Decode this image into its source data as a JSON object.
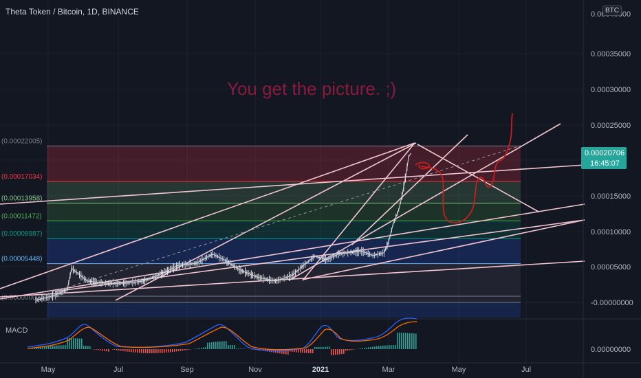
{
  "header": {
    "symbol_title": "Theta Token / Bitcoin, 1D, BINANCE",
    "currency_badge": "BTC"
  },
  "annotation": {
    "text": "You get the picture. ;)",
    "color": "#8a1a3e"
  },
  "price_label": {
    "value": "0.00020706",
    "countdown": "16:45:07",
    "color": "#26a69a"
  },
  "colors": {
    "background": "#131722",
    "candle_up": "#e0e3eb",
    "candle_down": "#b2b5be",
    "trendline": "#f2c6d0",
    "drawing": "#c81e1e",
    "macd_line": "#2962ff",
    "signal_line": "#ff6d00"
  },
  "chart_data": {
    "type": "line",
    "title": "Theta Token / Bitcoin, 1D, BINANCE",
    "x_ticks": [
      "May",
      "Jul",
      "Sep",
      "Nov",
      "2021",
      "Mar",
      "May",
      "Jul"
    ],
    "y_ticks": [
      "0.00040000",
      "0.00035000",
      "0.00030000",
      "0.00025000",
      "0.00015000",
      "0.00010000",
      "0.00005000",
      "-0.00000000"
    ],
    "ylim": [
      -2e-05,
      0.0004
    ],
    "fib_levels": [
      {
        "label": "(0.00022005)",
        "value": 0.00022005,
        "color": "#787b86"
      },
      {
        "label": "(0.00017034)",
        "value": 0.00017034,
        "color": "#f23645"
      },
      {
        "label": "(0.00013958)",
        "value": 0.00013958,
        "color": "#81c784"
      },
      {
        "label": "(0.00011472)",
        "value": 0.00011472,
        "color": "#4caf50"
      },
      {
        "label": "(0.00008987)",
        "value": 8.987e-05,
        "color": "#089981"
      },
      {
        "label": "(0.00005448)",
        "value": 5.448e-05,
        "color": "#64b5f6"
      },
      {
        "label": "(0.00000000)",
        "value": 0.0,
        "color": "#787b86"
      }
    ],
    "series": [
      {
        "name": "",
        "dates": [
          "2020-04-20",
          "2020-05-05",
          "2020-05-18",
          "2020-05-22",
          "2020-06-05",
          "2020-06-20",
          "2020-07-10",
          "2020-07-25",
          "2020-08-10",
          "2020-08-25",
          "2020-09-10",
          "2020-09-25",
          "2020-10-05",
          "2020-10-20",
          "2020-11-05",
          "2020-11-20",
          "2020-12-05",
          "2020-12-15",
          "2020-12-25",
          "2021-01-05",
          "2021-01-15",
          "2021-01-25",
          "2021-02-05",
          "2021-02-15",
          "2021-02-25",
          "2021-03-01",
          "2021-03-05",
          "2021-03-10",
          "2021-03-13",
          "2021-03-16",
          "2021-03-19",
          "2021-03-21"
        ],
        "values": [
          3e-06,
          9e-06,
          1.8e-05,
          4.8e-05,
          3e-05,
          2.7e-05,
          2.7e-05,
          3e-05,
          4e-05,
          5.2e-05,
          5.5e-05,
          6.8e-05,
          6e-05,
          4.5e-05,
          3.5e-05,
          3e-05,
          3.8e-05,
          5.2e-05,
          6.5e-05,
          6e-05,
          6.8e-05,
          7e-05,
          7.2e-05,
          6.6e-05,
          7e-05,
          8.5e-05,
          0.00011,
          0.00013,
          0.00015,
          0.000175,
          0.000205,
          0.00021
        ]
      }
    ],
    "macd": {
      "label": "MACD",
      "y_tick": "0.00000000"
    }
  }
}
